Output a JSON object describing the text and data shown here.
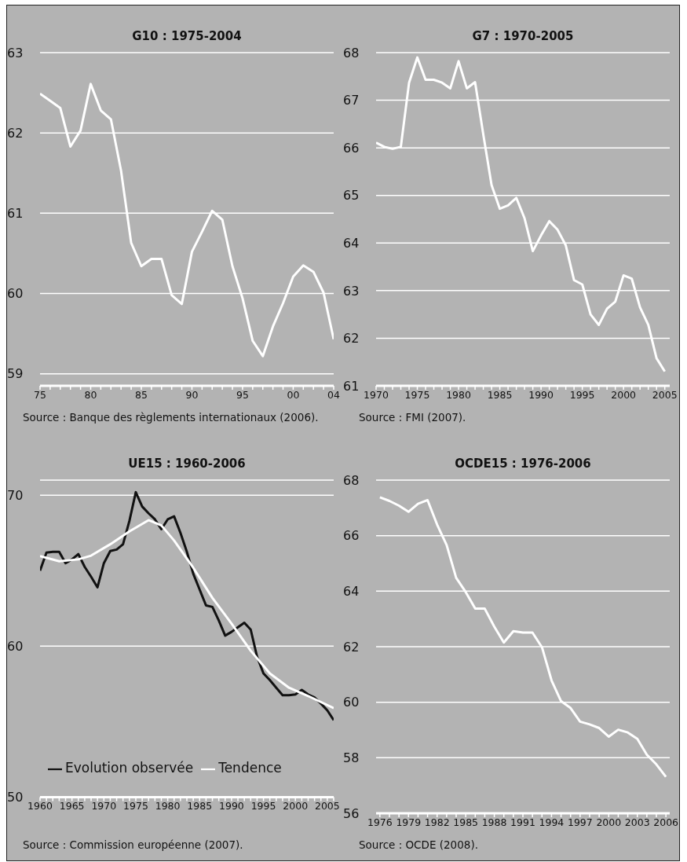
{
  "chart_data": [
    {
      "type": "line",
      "title": "G10 : 1975-2004",
      "x": [
        1975,
        1976,
        1977,
        1978,
        1979,
        1980,
        1981,
        1982,
        1983,
        1984,
        1985,
        1986,
        1987,
        1988,
        1989,
        1990,
        1991,
        1992,
        1993,
        1994,
        1995,
        1996,
        1997,
        1998,
        1999,
        2000,
        2001,
        2002,
        2003,
        2004
      ],
      "values": [
        62.49,
        62.4,
        62.31,
        61.83,
        62.03,
        62.61,
        62.28,
        62.17,
        61.53,
        60.63,
        60.34,
        60.43,
        60.43,
        59.98,
        59.87,
        60.52,
        60.77,
        61.03,
        60.92,
        60.34,
        59.94,
        59.41,
        59.22,
        59.59,
        59.88,
        60.21,
        60.35,
        60.27,
        60.01,
        59.43
      ],
      "color": "#ffffff",
      "xlim": [
        1975,
        2004
      ],
      "xticks": [
        {
          "value": 1975,
          "label": "75"
        },
        {
          "value": 1976,
          "label": null
        },
        {
          "value": 1977,
          "label": null
        },
        {
          "value": 1978,
          "label": null
        },
        {
          "value": 1979,
          "label": null
        },
        {
          "value": 1980,
          "label": "80"
        },
        {
          "value": 1981,
          "label": null
        },
        {
          "value": 1982,
          "label": null
        },
        {
          "value": 1983,
          "label": null
        },
        {
          "value": 1984,
          "label": null
        },
        {
          "value": 1985,
          "label": "85"
        },
        {
          "value": 1986,
          "label": null
        },
        {
          "value": 1987,
          "label": null
        },
        {
          "value": 1988,
          "label": null
        },
        {
          "value": 1989,
          "label": null
        },
        {
          "value": 1990,
          "label": "90"
        },
        {
          "value": 1991,
          "label": null
        },
        {
          "value": 1992,
          "label": null
        },
        {
          "value": 1993,
          "label": null
        },
        {
          "value": 1994,
          "label": null
        },
        {
          "value": 1995,
          "label": "95"
        },
        {
          "value": 1996,
          "label": null
        },
        {
          "value": 1997,
          "label": null
        },
        {
          "value": 1998,
          "label": null
        },
        {
          "value": 1999,
          "label": null
        },
        {
          "value": 2000,
          "label": "00"
        },
        {
          "value": 2001,
          "label": null
        },
        {
          "value": 2002,
          "label": null
        },
        {
          "value": 2003,
          "label": null
        },
        {
          "value": 2004,
          "label": "04"
        }
      ],
      "ylim": [
        58.85,
        63
      ],
      "yticks": [
        59,
        60,
        61,
        62,
        63
      ],
      "grid": "y",
      "annotations": [
        "Source : Banque des règlements internationaux (2006)."
      ]
    },
    {
      "type": "line",
      "title": "G7 : 1970-2005",
      "x": [
        1970,
        1971,
        1972,
        1973,
        1974,
        1975,
        1976,
        1977,
        1978,
        1979,
        1980,
        1981,
        1982,
        1983,
        1984,
        1985,
        1986,
        1987,
        1988,
        1989,
        1990,
        1991,
        1992,
        1993,
        1994,
        1995,
        1996,
        1997,
        1998,
        1999,
        2000,
        2001,
        2002,
        2003,
        2004,
        2005
      ],
      "values": [
        66.11,
        66.02,
        65.98,
        66.02,
        67.37,
        67.9,
        67.43,
        67.43,
        67.37,
        67.25,
        67.82,
        67.25,
        67.38,
        66.28,
        65.22,
        64.72,
        64.79,
        64.95,
        64.52,
        63.83,
        64.16,
        64.46,
        64.28,
        63.95,
        63.22,
        63.13,
        62.5,
        62.28,
        62.62,
        62.77,
        63.32,
        63.25,
        62.65,
        62.28,
        61.58,
        61.3
      ],
      "color": "#ffffff",
      "xlim": [
        1970,
        2005.6
      ],
      "xticks": [
        1970,
        {
          "value": 1971,
          "label": null
        },
        {
          "value": 1972,
          "label": null
        },
        {
          "value": 1973,
          "label": null
        },
        {
          "value": 1974,
          "label": null
        },
        1975,
        {
          "value": 1976,
          "label": null
        },
        {
          "value": 1977,
          "label": null
        },
        {
          "value": 1978,
          "label": null
        },
        {
          "value": 1979,
          "label": null
        },
        1980,
        {
          "value": 1981,
          "label": null
        },
        {
          "value": 1982,
          "label": null
        },
        {
          "value": 1983,
          "label": null
        },
        {
          "value": 1984,
          "label": null
        },
        1985,
        {
          "value": 1986,
          "label": null
        },
        {
          "value": 1987,
          "label": null
        },
        {
          "value": 1988,
          "label": null
        },
        {
          "value": 1989,
          "label": null
        },
        1990,
        {
          "value": 1991,
          "label": null
        },
        {
          "value": 1992,
          "label": null
        },
        {
          "value": 1993,
          "label": null
        },
        {
          "value": 1994,
          "label": null
        },
        1995,
        {
          "value": 1996,
          "label": null
        },
        {
          "value": 1997,
          "label": null
        },
        {
          "value": 1998,
          "label": null
        },
        {
          "value": 1999,
          "label": null
        },
        2000,
        {
          "value": 2001,
          "label": null
        },
        {
          "value": 2002,
          "label": null
        },
        {
          "value": 2003,
          "label": null
        },
        {
          "value": 2004,
          "label": null
        },
        2005
      ],
      "ylim": [
        61,
        68
      ],
      "yticks": [
        61,
        62,
        63,
        64,
        65,
        66,
        67,
        68
      ],
      "grid": "y",
      "annotations": [
        "Source : FMI (2007)."
      ]
    },
    {
      "type": "line",
      "title": "UE15 : 1960-2006",
      "series": [
        {
          "name": "Evolution observée",
          "color": "#111111",
          "x": [
            1960,
            1961,
            1962,
            1963,
            1964,
            1965,
            1966,
            1967,
            1968,
            1969,
            1970,
            1971,
            1972,
            1973,
            1974,
            1975,
            1976,
            1977,
            1978,
            1979,
            1980,
            1981,
            1982,
            1983,
            1984,
            1985,
            1986,
            1987,
            1988,
            1989,
            1990,
            1991,
            1992,
            1993,
            1994,
            1995,
            1996,
            1997,
            1998,
            1999,
            2000,
            2001,
            2002,
            2003,
            2004,
            2005,
            2006
          ],
          "values": [
            65.0,
            66.2,
            66.25,
            66.25,
            65.5,
            65.75,
            66.1,
            65.25,
            64.6,
            63.9,
            65.5,
            66.3,
            66.4,
            66.75,
            68.3,
            70.2,
            69.25,
            68.8,
            68.4,
            67.75,
            68.4,
            68.6,
            67.5,
            66.25,
            64.8,
            63.75,
            62.7,
            62.6,
            61.7,
            60.7,
            60.95,
            61.25,
            61.55,
            61.1,
            59.3,
            58.2,
            57.75,
            57.25,
            56.75,
            56.75,
            56.8,
            57.1,
            56.8,
            56.6,
            56.2,
            55.75,
            55.1
          ]
        },
        {
          "name": "Tendence",
          "color": "#ffffff",
          "x": [
            1960,
            1963,
            1966,
            1968,
            1971,
            1974,
            1977,
            1979,
            1981,
            1984,
            1987,
            1990,
            1993,
            1996,
            1999,
            2002,
            2006
          ],
          "values": [
            65.97,
            65.63,
            65.75,
            66.0,
            66.75,
            67.6,
            68.35,
            68.0,
            67.0,
            65.2,
            63.2,
            61.5,
            59.7,
            58.2,
            57.25,
            56.7,
            55.9
          ]
        }
      ],
      "xlim": [
        1960,
        2006
      ],
      "xticks": [
        1960,
        {
          "value": 1961,
          "label": null
        },
        {
          "value": 1962,
          "label": null
        },
        {
          "value": 1963,
          "label": null
        },
        {
          "value": 1964,
          "label": null
        },
        1965,
        {
          "value": 1966,
          "label": null
        },
        {
          "value": 1967,
          "label": null
        },
        {
          "value": 1968,
          "label": null
        },
        {
          "value": 1969,
          "label": null
        },
        1970,
        {
          "value": 1971,
          "label": null
        },
        {
          "value": 1972,
          "label": null
        },
        {
          "value": 1973,
          "label": null
        },
        {
          "value": 1974,
          "label": null
        },
        1975,
        {
          "value": 1976,
          "label": null
        },
        {
          "value": 1977,
          "label": null
        },
        {
          "value": 1978,
          "label": null
        },
        {
          "value": 1979,
          "label": null
        },
        1980,
        {
          "value": 1981,
          "label": null
        },
        {
          "value": 1982,
          "label": null
        },
        {
          "value": 1983,
          "label": null
        },
        {
          "value": 1984,
          "label": null
        },
        1985,
        {
          "value": 1986,
          "label": null
        },
        {
          "value": 1987,
          "label": null
        },
        {
          "value": 1988,
          "label": null
        },
        {
          "value": 1989,
          "label": null
        },
        1990,
        {
          "value": 1991,
          "label": null
        },
        {
          "value": 1992,
          "label": null
        },
        {
          "value": 1993,
          "label": null
        },
        {
          "value": 1994,
          "label": null
        },
        1995,
        {
          "value": 1996,
          "label": null
        },
        {
          "value": 1997,
          "label": null
        },
        {
          "value": 1998,
          "label": null
        },
        {
          "value": 1999,
          "label": null
        },
        2000,
        {
          "value": 2001,
          "label": null
        },
        {
          "value": 2002,
          "label": null
        },
        {
          "value": 2003,
          "label": null
        },
        {
          "value": 2004,
          "label": null
        },
        2005,
        {
          "value": 2006,
          "label": null
        }
      ],
      "ylim": [
        50,
        71
      ],
      "yticks": [
        50,
        60,
        70
      ],
      "grid": "y",
      "legend": "bottom left",
      "annotations": [
        "Source : Commission européenne (2007)."
      ]
    },
    {
      "type": "line",
      "title": "OCDE15 : 1976-2006",
      "x": [
        1976,
        1977,
        1978,
        1979,
        1980,
        1981,
        1982,
        1983,
        1984,
        1985,
        1986,
        1987,
        1988,
        1989,
        1990,
        1991,
        1992,
        1993,
        1994,
        1995,
        1996,
        1997,
        1998,
        1999,
        2000,
        2001,
        2002,
        2003,
        2004,
        2005,
        2006
      ],
      "values": [
        67.38,
        67.25,
        67.08,
        66.86,
        67.15,
        67.28,
        66.4,
        65.66,
        64.48,
        63.97,
        63.37,
        63.37,
        62.72,
        62.15,
        62.56,
        62.51,
        62.51,
        61.98,
        60.79,
        60.04,
        59.79,
        59.3,
        59.2,
        59.07,
        58.76,
        59.01,
        58.91,
        58.68,
        58.11,
        57.76,
        57.31
      ],
      "color": "#ffffff",
      "xlim": [
        1975.6,
        2006.4
      ],
      "xticks": [
        1976,
        {
          "value": 1977,
          "label": null
        },
        {
          "value": 1978,
          "label": null
        },
        1979,
        {
          "value": 1980,
          "label": null
        },
        {
          "value": 1981,
          "label": null
        },
        1982,
        {
          "value": 1983,
          "label": null
        },
        {
          "value": 1984,
          "label": null
        },
        1985,
        {
          "value": 1986,
          "label": null
        },
        {
          "value": 1987,
          "label": null
        },
        1988,
        {
          "value": 1989,
          "label": null
        },
        {
          "value": 1990,
          "label": null
        },
        1991,
        {
          "value": 1992,
          "label": null
        },
        {
          "value": 1993,
          "label": null
        },
        1994,
        {
          "value": 1995,
          "label": null
        },
        {
          "value": 1996,
          "label": null
        },
        1997,
        {
          "value": 1998,
          "label": null
        },
        {
          "value": 1999,
          "label": null
        },
        2000,
        {
          "value": 2001,
          "label": null
        },
        {
          "value": 2002,
          "label": null
        },
        2003,
        {
          "value": 2004,
          "label": null
        },
        {
          "value": 2005,
          "label": null
        },
        2006
      ],
      "ylim": [
        56,
        68
      ],
      "yticks": [
        56,
        58,
        60,
        62,
        64,
        66,
        68
      ],
      "grid": "y",
      "annotations": [
        "Source : OCDE (2008)."
      ]
    }
  ]
}
